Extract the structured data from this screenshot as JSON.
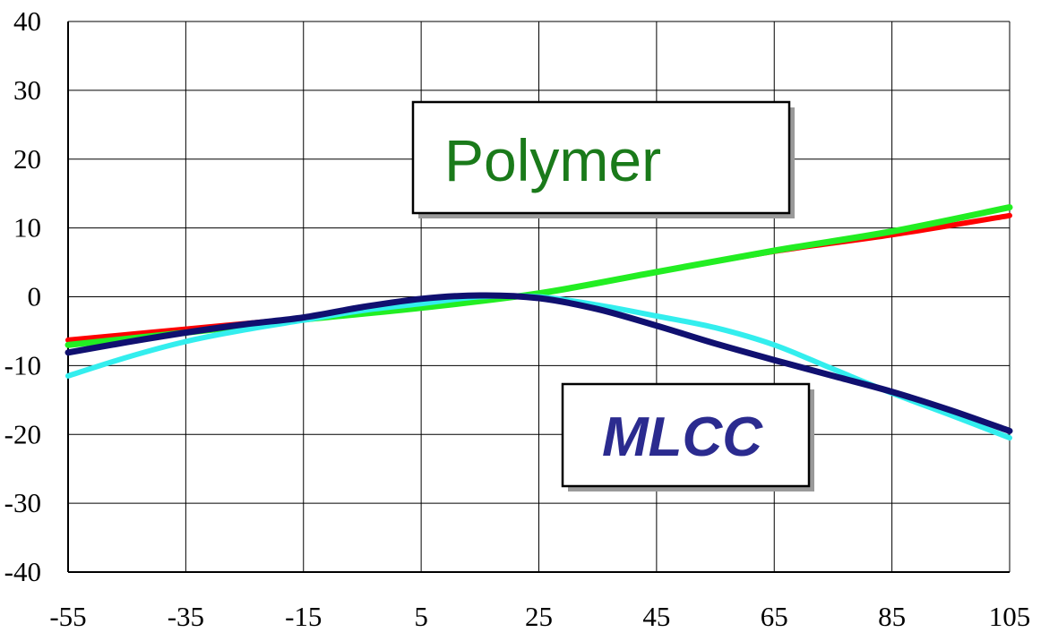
{
  "chart_data": {
    "type": "line",
    "title": "",
    "xlabel": "",
    "ylabel": "",
    "xlim": [
      -55,
      105
    ],
    "ylim": [
      -40,
      40
    ],
    "x_ticks": [
      -55,
      -35,
      -15,
      5,
      25,
      45,
      65,
      85,
      105
    ],
    "y_ticks": [
      40,
      30,
      20,
      10,
      0,
      -10,
      -20,
      -30,
      -40
    ],
    "x_tick_labels": [
      "-55",
      "-35",
      "-15",
      "5",
      "25",
      "45",
      "65",
      "85",
      "105"
    ],
    "y_tick_labels": [
      "40",
      "30",
      "20",
      "10",
      "0",
      "-10",
      "-20",
      "-30",
      "-40"
    ],
    "grid": true,
    "legend": "none",
    "series": [
      {
        "color": "#ff0000",
        "x": [
          -55,
          -35,
          -15,
          5,
          25,
          45,
          65,
          85,
          105
        ],
        "y": [
          -6.3,
          -4.7,
          -3.1,
          -1.4,
          0.5,
          3.6,
          6.6,
          9.0,
          11.8
        ]
      },
      {
        "color": "#22ee22",
        "x": [
          -55,
          -35,
          -15,
          5,
          25,
          45,
          65,
          85,
          105
        ],
        "y": [
          -7.0,
          -5.2,
          -3.3,
          -1.6,
          0.5,
          3.6,
          6.7,
          9.5,
          13.0
        ]
      },
      {
        "color": "#33eeee",
        "x": [
          -55,
          -45,
          -35,
          -25,
          -15,
          -5,
          5,
          15,
          25,
          35,
          45,
          55,
          65,
          75,
          85,
          95,
          105
        ],
        "y": [
          -11.5,
          -8.8,
          -6.5,
          -4.8,
          -3.4,
          -2.0,
          -1.0,
          0.0,
          0.0,
          -1.2,
          -2.8,
          -4.5,
          -7.0,
          -10.5,
          -14.0,
          -17.2,
          -20.5
        ]
      },
      {
        "color": "#101070",
        "x": [
          -55,
          -45,
          -35,
          -25,
          -15,
          -5,
          5,
          15,
          25,
          35,
          45,
          55,
          65,
          75,
          85,
          95,
          105
        ],
        "y": [
          -8.1,
          -6.6,
          -5.2,
          -4.0,
          -3.0,
          -1.5,
          -0.3,
          0.2,
          -0.2,
          -1.8,
          -4.2,
          -6.8,
          -9.2,
          -11.5,
          -13.8,
          -16.5,
          -19.5
        ]
      }
    ],
    "annotations": [
      {
        "text": "Polymer",
        "color": "#1a7a1a"
      },
      {
        "text": "MLCC",
        "color": "#2b2b8f"
      }
    ]
  }
}
